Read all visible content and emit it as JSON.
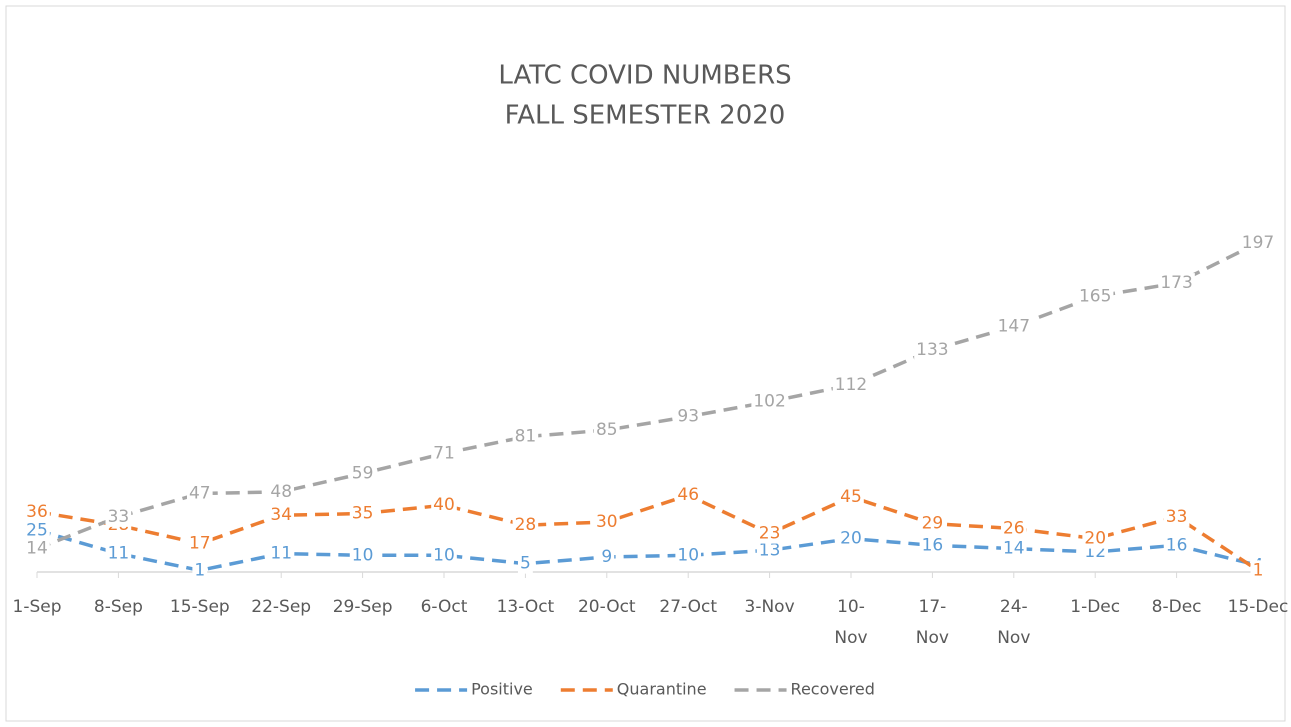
{
  "chart_data": {
    "type": "line",
    "title": "LATC COVID NUMBERS",
    "subtitle": "FALL SEMESTER 2020",
    "categories": [
      "1-Sep",
      "8-Sep",
      "15-Sep",
      "22-Sep",
      "29-Sep",
      "6-Oct",
      "13-Oct",
      "20-Oct",
      "27-Oct",
      "3-Nov",
      "10-Nov",
      "17-Nov",
      "24-Nov",
      "1-Dec",
      "8-Dec",
      "15-Dec"
    ],
    "series": [
      {
        "name": "Positive",
        "color": "#5b9bd5",
        "values": [
          25,
          11,
          1,
          11,
          10,
          10,
          5,
          9,
          10,
          13,
          20,
          16,
          14,
          12,
          16,
          4
        ]
      },
      {
        "name": "Quarantine",
        "color": "#ed7d31",
        "values": [
          36,
          28,
          17,
          34,
          35,
          40,
          28,
          30,
          46,
          23,
          45,
          29,
          26,
          20,
          33,
          1
        ]
      },
      {
        "name": "Recovered",
        "color": "#a5a5a5",
        "values": [
          14,
          33,
          47,
          48,
          59,
          71,
          81,
          85,
          93,
          102,
          112,
          133,
          147,
          165,
          173,
          197
        ]
      }
    ],
    "ylim": [
      0,
      200
    ],
    "legend": "bottom",
    "line_style": "dashed"
  }
}
